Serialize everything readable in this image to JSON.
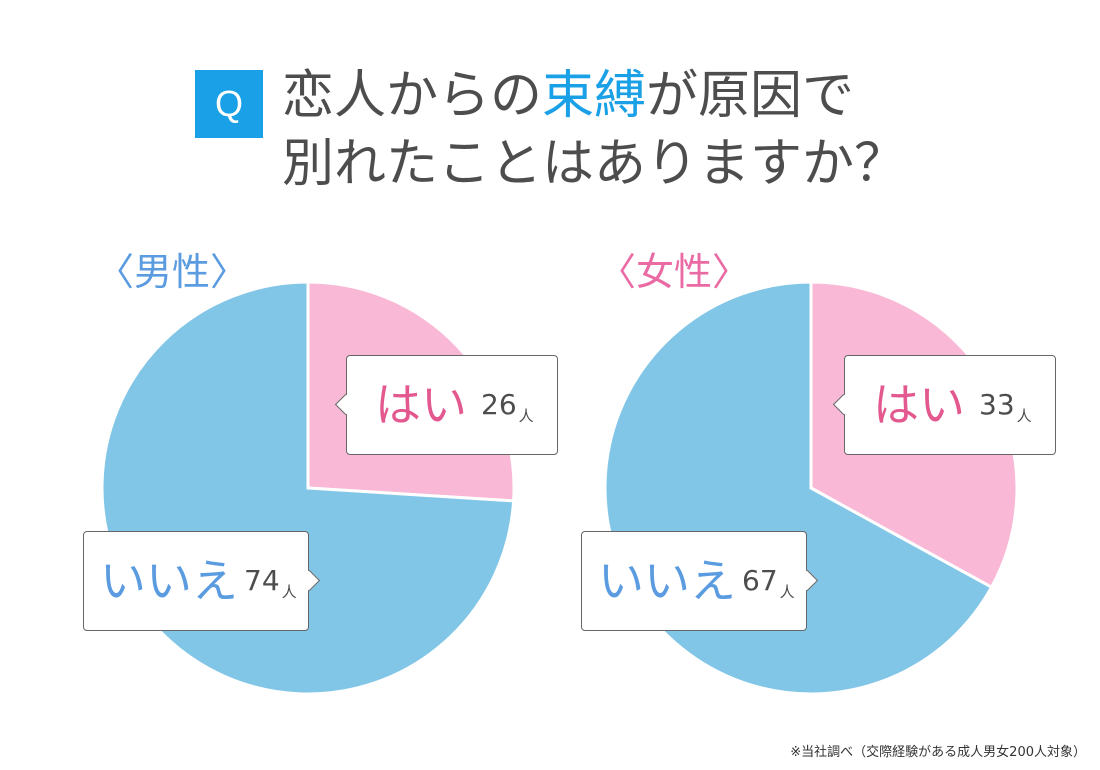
{
  "question": {
    "badge": "Q",
    "line1_part1": "恋人からの",
    "line1_highlight": "束縛",
    "line1_part2": "が原因で",
    "line2": "別れたことはありますか？"
  },
  "colors": {
    "yes": "#f9b8d6",
    "no": "#82c6e7",
    "highlight": "#1aa0e6",
    "male_label": "#5b9ce0",
    "female_label": "#ea6aa3"
  },
  "unit": "人",
  "footnote": "※当社調べ（交際経験がある成人男女200人対象）",
  "chart_data": [
    {
      "type": "pie",
      "label": "〈男性〉",
      "slices": [
        {
          "name": "はい",
          "value": 26
        },
        {
          "name": "いいえ",
          "value": 74
        }
      ]
    },
    {
      "type": "pie",
      "label": "〈女性〉",
      "slices": [
        {
          "name": "はい",
          "value": 33
        },
        {
          "name": "いいえ",
          "value": 67
        }
      ]
    }
  ]
}
